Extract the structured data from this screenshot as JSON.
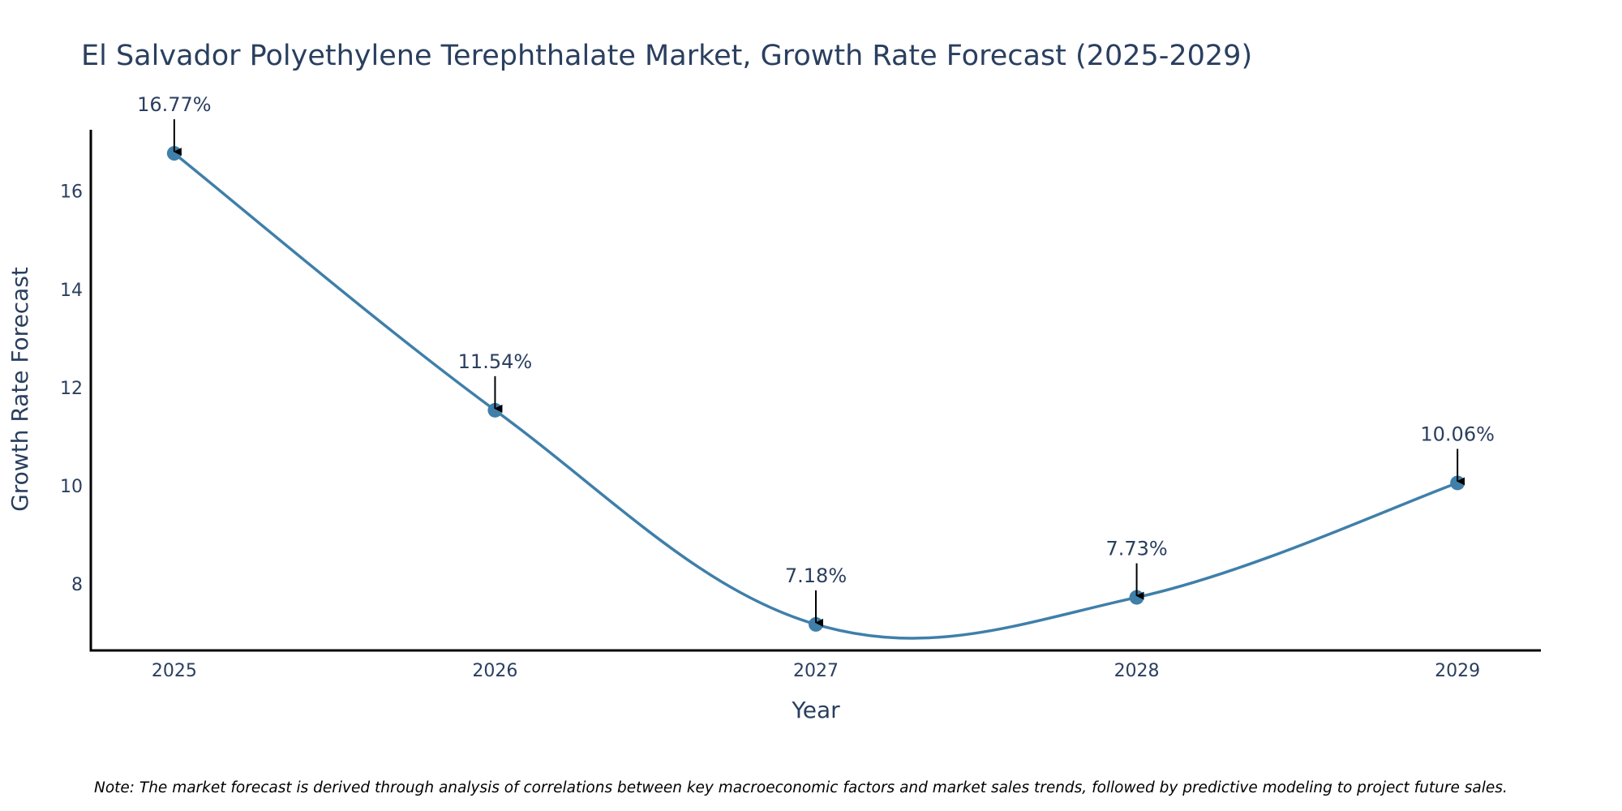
{
  "chart_data": {
    "type": "line",
    "title": "El Salvador Polyethylene Terephthalate Market, Growth Rate Forecast (2025-2029)",
    "xlabel": "Year",
    "ylabel": "Growth Rate Forecast",
    "categories": [
      "2025",
      "2026",
      "2027",
      "2028",
      "2029"
    ],
    "series": [
      {
        "name": "Growth Rate Forecast",
        "values": [
          16.77,
          11.54,
          7.18,
          7.73,
          10.06
        ],
        "labels": [
          "16.77%",
          "11.54%",
          "7.18%",
          "7.73%",
          "10.06%"
        ],
        "color": "#3f7faa",
        "line_shape": "spline"
      }
    ],
    "yticks": [
      "8",
      "10",
      "12",
      "14",
      "16"
    ],
    "ytick_values": [
      8,
      10,
      12,
      14,
      16
    ],
    "ylim": [
      6.65,
      17.25
    ],
    "xlim": [
      -0.26,
      4.26
    ],
    "grid": false,
    "note": "Note: The market forecast is derived through analysis of correlations between key macroeconomic factors and market sales trends, followed by predictive modeling to project future sales."
  }
}
